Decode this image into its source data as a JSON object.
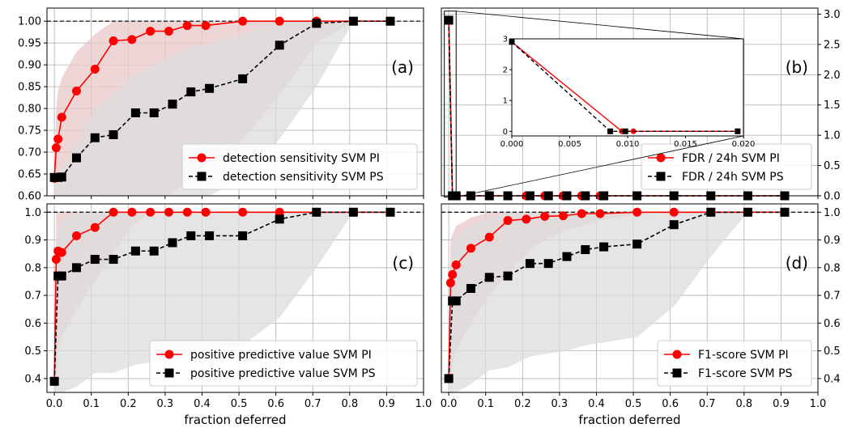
{
  "chart_data": [
    {
      "type": "line",
      "panel_label": "(a)",
      "xlabel": "",
      "ylabel": "",
      "xlim": [
        -0.02,
        1.0
      ],
      "ylim": [
        0.6,
        1.03
      ],
      "yticks": [
        "0.60",
        "0.65",
        "0.70",
        "0.75",
        "0.80",
        "0.85",
        "0.90",
        "0.95",
        "1.00"
      ],
      "ytick_values": [
        0.6,
        0.65,
        0.7,
        0.75,
        0.8,
        0.85,
        0.9,
        0.95,
        1.0
      ],
      "reference_line": 1.0,
      "legend_position": "lower-right",
      "series": [
        {
          "name": "detection sensitivity SVM PI",
          "color": "#ff0000",
          "marker": "circle",
          "linestyle": "solid",
          "x": [
            0.0,
            0.005,
            0.01,
            0.02,
            0.06,
            0.11,
            0.16,
            0.21,
            0.26,
            0.31,
            0.36,
            0.41,
            0.51,
            0.61,
            0.71,
            0.81,
            0.91
          ],
          "y": [
            0.64,
            0.71,
            0.73,
            0.78,
            0.84,
            0.89,
            0.955,
            0.958,
            0.977,
            0.977,
            0.99,
            0.99,
            1.0,
            1.0,
            1.0,
            1.0,
            1.0
          ],
          "band_low": [
            0.6,
            0.6,
            0.6,
            0.6,
            0.6,
            0.6,
            0.6,
            0.6,
            0.6,
            0.6,
            0.63,
            0.67,
            0.73,
            0.83,
            0.95,
            1.0,
            1.0
          ],
          "band_high": [
            0.64,
            0.8,
            0.84,
            0.87,
            0.93,
            0.97,
            1.0,
            1.0,
            1.0,
            1.0,
            1.0,
            1.0,
            1.0,
            1.0,
            1.0,
            1.0,
            1.0
          ]
        },
        {
          "name": "detection sensitivity SVM PS",
          "color": "#000000",
          "marker": "square",
          "linestyle": "dashed",
          "x": [
            0.0,
            0.01,
            0.02,
            0.06,
            0.11,
            0.16,
            0.22,
            0.27,
            0.32,
            0.37,
            0.42,
            0.51,
            0.61,
            0.71,
            0.81,
            0.91
          ],
          "y": [
            0.642,
            0.642,
            0.643,
            0.687,
            0.733,
            0.74,
            0.79,
            0.79,
            0.81,
            0.838,
            0.846,
            0.868,
            0.945,
            0.995,
            1.0,
            1.0
          ],
          "band_low": [
            0.6,
            0.6,
            0.6,
            0.6,
            0.6,
            0.6,
            0.6,
            0.6,
            0.6,
            0.6,
            0.6,
            0.64,
            0.73,
            0.85,
            1.0,
            1.0
          ],
          "band_high": [
            0.64,
            0.66,
            0.66,
            0.72,
            0.8,
            0.83,
            0.88,
            0.9,
            0.92,
            0.94,
            0.95,
            0.97,
            1.0,
            1.0,
            1.0,
            1.0
          ]
        }
      ]
    },
    {
      "type": "line",
      "panel_label": "(b)",
      "xlabel": "",
      "ylabel": "",
      "xlim": [
        -0.02,
        1.0
      ],
      "ylim": [
        0.0,
        3.1
      ],
      "yticks": [
        "0.0",
        "0.5",
        "1.0",
        "1.5",
        "2.0",
        "2.5",
        "3.0"
      ],
      "ytick_values": [
        0.0,
        0.5,
        1.0,
        1.5,
        2.0,
        2.5,
        3.0
      ],
      "y_axis_side": "right",
      "legend_position": "lower-right",
      "series": [
        {
          "name": "FDR / 24h SVM PI",
          "color": "#ff0000",
          "marker": "circle",
          "linestyle": "solid",
          "x": [
            0.0,
            0.01,
            0.02,
            0.06,
            0.11,
            0.16,
            0.21,
            0.26,
            0.31,
            0.36,
            0.41,
            0.51,
            0.61,
            0.71,
            0.81,
            0.91
          ],
          "y": [
            2.9,
            0.0,
            0.0,
            0.0,
            0.0,
            0.0,
            0.0,
            0.0,
            0.0,
            0.0,
            0.0,
            0.0,
            0.0,
            0.0,
            0.0,
            0.0
          ]
        },
        {
          "name": "FDR / 24h SVM PS",
          "color": "#000000",
          "marker": "square",
          "linestyle": "dashed",
          "x": [
            0.0,
            0.01,
            0.02,
            0.06,
            0.11,
            0.16,
            0.22,
            0.27,
            0.32,
            0.37,
            0.42,
            0.51,
            0.61,
            0.71,
            0.81,
            0.91
          ],
          "y": [
            2.9,
            0.0,
            0.0,
            0.0,
            0.0,
            0.0,
            0.0,
            0.0,
            0.0,
            0.0,
            0.0,
            0.0,
            0.0,
            0.0,
            0.0,
            0.0
          ]
        }
      ],
      "inset": {
        "xlim": [
          0.0,
          0.02
        ],
        "ylim": [
          -0.15,
          3.0
        ],
        "xticks": [
          "0.000",
          "0.005",
          "0.010",
          "0.015",
          "0.020"
        ],
        "xtick_values": [
          0.0,
          0.005,
          0.01,
          0.015,
          0.02
        ],
        "yticks": [
          "0",
          "1",
          "2",
          "3"
        ],
        "ytick_values": [
          0,
          1,
          2,
          3
        ],
        "series": [
          {
            "color": "#ff0000",
            "marker": "circle",
            "linestyle": "solid",
            "x": [
              0.0,
              0.0095,
              0.0105,
              0.0195
            ],
            "y": [
              2.9,
              0.0,
              0.0,
              0.0
            ]
          },
          {
            "color": "#000000",
            "marker": "square",
            "linestyle": "dashed",
            "x": [
              0.0,
              0.0085,
              0.0098,
              0.0195
            ],
            "y": [
              2.9,
              0.0,
              0.0,
              0.0
            ]
          }
        ]
      }
    },
    {
      "type": "line",
      "panel_label": "(c)",
      "xlabel": "fraction deferred",
      "ylabel": "",
      "xlim": [
        -0.02,
        1.0
      ],
      "ylim": [
        0.35,
        1.03
      ],
      "xticks": [
        "0.0",
        "0.1",
        "0.2",
        "0.3",
        "0.4",
        "0.5",
        "0.6",
        "0.7",
        "0.8",
        "0.9",
        "1.0"
      ],
      "xtick_values": [
        0.0,
        0.1,
        0.2,
        0.3,
        0.4,
        0.5,
        0.6,
        0.7,
        0.8,
        0.9,
        1.0
      ],
      "yticks": [
        "0.4",
        "0.5",
        "0.6",
        "0.7",
        "0.8",
        "0.9",
        "1.0"
      ],
      "ytick_values": [
        0.4,
        0.5,
        0.6,
        0.7,
        0.8,
        0.9,
        1.0
      ],
      "reference_line": 1.0,
      "legend_position": "lower-right",
      "series": [
        {
          "name": "positive predictive value SVM PI",
          "color": "#ff0000",
          "marker": "circle",
          "linestyle": "solid",
          "x": [
            0.0,
            0.005,
            0.01,
            0.02,
            0.06,
            0.11,
            0.16,
            0.21,
            0.26,
            0.31,
            0.36,
            0.41,
            0.51,
            0.61,
            0.71,
            0.81,
            0.91
          ],
          "y": [
            0.39,
            0.83,
            0.86,
            0.855,
            0.915,
            0.945,
            1.0,
            1.0,
            1.0,
            1.0,
            1.0,
            1.0,
            1.0,
            1.0,
            1.0,
            1.0,
            1.0
          ],
          "band_low": [
            0.35,
            0.35,
            0.5,
            0.55,
            0.65,
            0.75,
            0.85,
            0.95,
            1.0,
            1.0,
            1.0,
            1.0,
            1.0,
            1.0,
            1.0,
            1.0,
            1.0
          ],
          "band_high": [
            0.39,
            1.0,
            1.0,
            1.0,
            1.0,
            1.0,
            1.0,
            1.0,
            1.0,
            1.0,
            1.0,
            1.0,
            1.0,
            1.0,
            1.0,
            1.0,
            1.0
          ]
        },
        {
          "name": "positive predictive value SVM PS",
          "color": "#000000",
          "marker": "square",
          "linestyle": "dashed",
          "x": [
            0.0,
            0.01,
            0.02,
            0.06,
            0.11,
            0.16,
            0.22,
            0.27,
            0.32,
            0.37,
            0.42,
            0.51,
            0.61,
            0.71,
            0.81,
            0.91
          ],
          "y": [
            0.39,
            0.77,
            0.77,
            0.8,
            0.83,
            0.83,
            0.86,
            0.86,
            0.89,
            0.915,
            0.915,
            0.915,
            0.975,
            1.0,
            1.0,
            1.0
          ],
          "band_low": [
            0.35,
            0.35,
            0.35,
            0.37,
            0.42,
            0.42,
            0.45,
            0.46,
            0.47,
            0.5,
            0.5,
            0.52,
            0.62,
            0.8,
            1.0,
            1.0
          ],
          "band_high": [
            0.39,
            0.95,
            0.97,
            1.0,
            1.0,
            1.0,
            1.0,
            1.0,
            1.0,
            1.0,
            1.0,
            1.0,
            1.0,
            1.0,
            1.0,
            1.0
          ]
        }
      ]
    },
    {
      "type": "line",
      "panel_label": "(d)",
      "xlabel": "fraction deferred",
      "ylabel": "",
      "xlim": [
        -0.02,
        1.0
      ],
      "ylim": [
        0.35,
        1.03
      ],
      "xticks": [
        "0.0",
        "0.1",
        "0.2",
        "0.3",
        "0.4",
        "0.5",
        "0.6",
        "0.7",
        "0.8",
        "0.9",
        "1.0"
      ],
      "xtick_values": [
        0.0,
        0.1,
        0.2,
        0.3,
        0.4,
        0.5,
        0.6,
        0.7,
        0.8,
        0.9,
        1.0
      ],
      "yticks": [
        "0.4",
        "0.5",
        "0.6",
        "0.7",
        "0.8",
        "0.9",
        "1.0"
      ],
      "ytick_values": [
        0.4,
        0.5,
        0.6,
        0.7,
        0.8,
        0.9,
        1.0
      ],
      "y_axis_side": "right",
      "reference_line": 1.0,
      "legend_position": "lower-right",
      "series": [
        {
          "name": "F1-score SVM PI",
          "color": "#ff0000",
          "marker": "circle",
          "linestyle": "solid",
          "x": [
            0.0,
            0.005,
            0.01,
            0.02,
            0.06,
            0.11,
            0.16,
            0.21,
            0.26,
            0.31,
            0.36,
            0.41,
            0.51,
            0.61,
            0.71,
            0.81,
            0.91
          ],
          "y": [
            0.4,
            0.745,
            0.775,
            0.81,
            0.87,
            0.91,
            0.97,
            0.975,
            0.985,
            0.987,
            0.995,
            0.995,
            1.0,
            1.0,
            1.0,
            1.0,
            1.0
          ],
          "band_low": [
            0.35,
            0.4,
            0.45,
            0.5,
            0.6,
            0.7,
            0.78,
            0.85,
            0.9,
            0.93,
            0.95,
            0.97,
            0.99,
            1.0,
            1.0,
            1.0,
            1.0
          ],
          "band_high": [
            0.4,
            0.9,
            0.92,
            0.95,
            0.98,
            1.0,
            1.0,
            1.0,
            1.0,
            1.0,
            1.0,
            1.0,
            1.0,
            1.0,
            1.0,
            1.0,
            1.0
          ]
        },
        {
          "name": "F1-score SVM PS",
          "color": "#000000",
          "marker": "square",
          "linestyle": "dashed",
          "x": [
            0.0,
            0.01,
            0.02,
            0.06,
            0.11,
            0.16,
            0.22,
            0.27,
            0.32,
            0.37,
            0.42,
            0.51,
            0.61,
            0.71,
            0.81,
            0.91
          ],
          "y": [
            0.4,
            0.68,
            0.68,
            0.725,
            0.765,
            0.77,
            0.815,
            0.815,
            0.84,
            0.865,
            0.875,
            0.885,
            0.955,
            1.0,
            1.0,
            1.0
          ],
          "band_low": [
            0.35,
            0.35,
            0.35,
            0.38,
            0.43,
            0.44,
            0.48,
            0.49,
            0.5,
            0.52,
            0.53,
            0.55,
            0.66,
            0.84,
            1.0,
            1.0
          ],
          "band_high": [
            0.4,
            0.9,
            0.92,
            0.95,
            0.98,
            1.0,
            1.0,
            1.0,
            1.0,
            1.0,
            1.0,
            1.0,
            1.0,
            1.0,
            1.0,
            1.0
          ]
        }
      ]
    }
  ],
  "colors": {
    "pi_line": "#ff0000",
    "ps_line": "#000000",
    "pi_band": "#e8c8c8",
    "ps_band": "#dcdcdc",
    "grid": "#b0b0b0"
  }
}
